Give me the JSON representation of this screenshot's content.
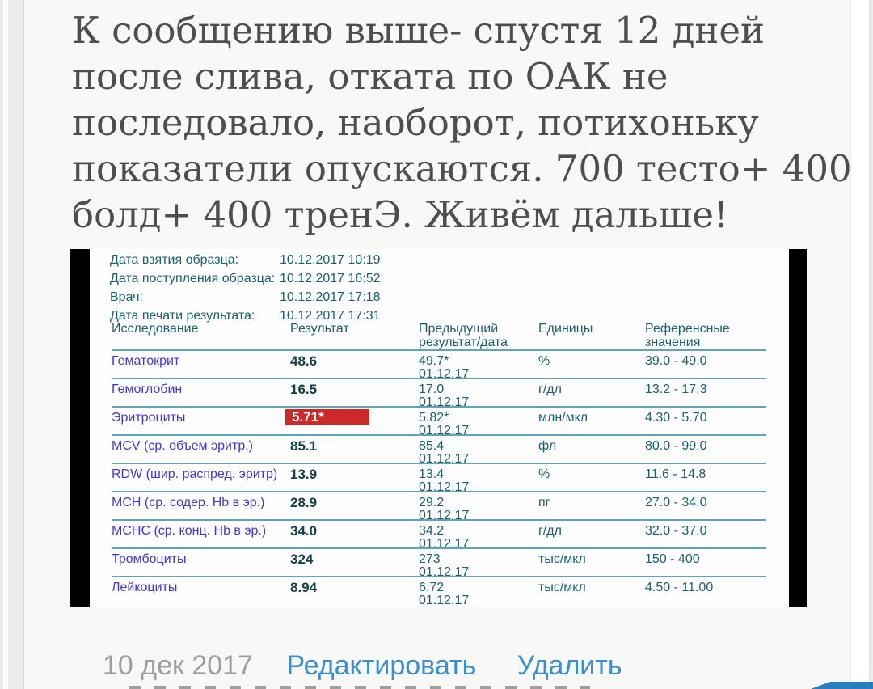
{
  "post": {
    "text_lines": [
      "К сообщению выше- спустя 12 дней",
      "после слива, отката по ОАК не",
      "последовало, наоборот, потихоньку",
      "показатели опускаются. 700 тесто+ 400",
      "болд+ 400 тренЭ. Живём дальше!"
    ],
    "footer": {
      "date": "10 дек 2017",
      "edit_label": "Редактировать",
      "delete_label": "Удалить"
    }
  },
  "lab_report": {
    "meta": [
      {
        "label": "Дата взятия образца:",
        "value": "10.12.2017 10:19"
      },
      {
        "label": "Дата поступления образца:",
        "value": "10.12.2017 16:52"
      },
      {
        "label": "Врач:",
        "value": "10.12.2017 17:18"
      },
      {
        "label": "Дата печати результата:",
        "value": "10.12.2017 17:31"
      }
    ],
    "table": {
      "columns": [
        "Исследование",
        "Результат",
        "Предыдущий результат/дата",
        "Единицы",
        "Референсные значения"
      ],
      "rows": [
        {
          "name": "Гематокрит",
          "result": "48.6",
          "result_flagged": false,
          "prev": "49.7*",
          "prev_date": "01.12.17",
          "units": "%",
          "ref": "39.0 - 49.0"
        },
        {
          "name": "Гемоглобин",
          "result": "16.5",
          "result_flagged": false,
          "prev": "17.0",
          "prev_date": "01.12.17",
          "units": "г/дл",
          "ref": "13.2 - 17.3"
        },
        {
          "name": "Эритроциты",
          "result": "5.71*",
          "result_flagged": true,
          "prev": "5.82*",
          "prev_date": "01.12.17",
          "units": "млн/мкл",
          "ref": "4.30 - 5.70"
        },
        {
          "name": "MCV (ср. объем эритр.)",
          "result": "85.1",
          "result_flagged": false,
          "prev": "85.4",
          "prev_date": "01.12.17",
          "units": "фл",
          "ref": "80.0 - 99.0"
        },
        {
          "name": "RDW (шир. распред. эритр)",
          "result": "13.9",
          "result_flagged": false,
          "prev": "13.4",
          "prev_date": "01.12.17",
          "units": "%",
          "ref": "11.6 - 14.8"
        },
        {
          "name": "MCH (ср. содер. Hb в эр.)",
          "result": "28.9",
          "result_flagged": false,
          "prev": "29.2",
          "prev_date": "01.12.17",
          "units": "пг",
          "ref": "27.0 - 34.0"
        },
        {
          "name": "MCHC (ср. конц. Hb в эр.)",
          "result": "34.0",
          "result_flagged": false,
          "prev": "34.2",
          "prev_date": "01.12.17",
          "units": "г/дл",
          "ref": "32.0 - 37.0"
        },
        {
          "name": "Тромбоциты",
          "result": "324",
          "result_flagged": false,
          "prev": "273",
          "prev_date": "01.12.17",
          "units": "тыс/мкл",
          "ref": "150 - 400"
        },
        {
          "name": "Лейкоциты",
          "result": "8.94",
          "result_flagged": false,
          "prev": "6.72",
          "prev_date": "01.12.17",
          "units": "тыс/мкл",
          "ref": "4.50 - 11.00"
        }
      ]
    }
  },
  "colors": {
    "link_blue": "#3b8fcd",
    "flag_red": "#cd2928",
    "report_teal": "#1a5f6b",
    "test_name_blue": "#4138d0",
    "rule_teal": "#62a4b4",
    "fab_blue": "#2b7dc1",
    "post_text_gray": "#4e4e4e",
    "date_gray": "#9e9e9e"
  }
}
